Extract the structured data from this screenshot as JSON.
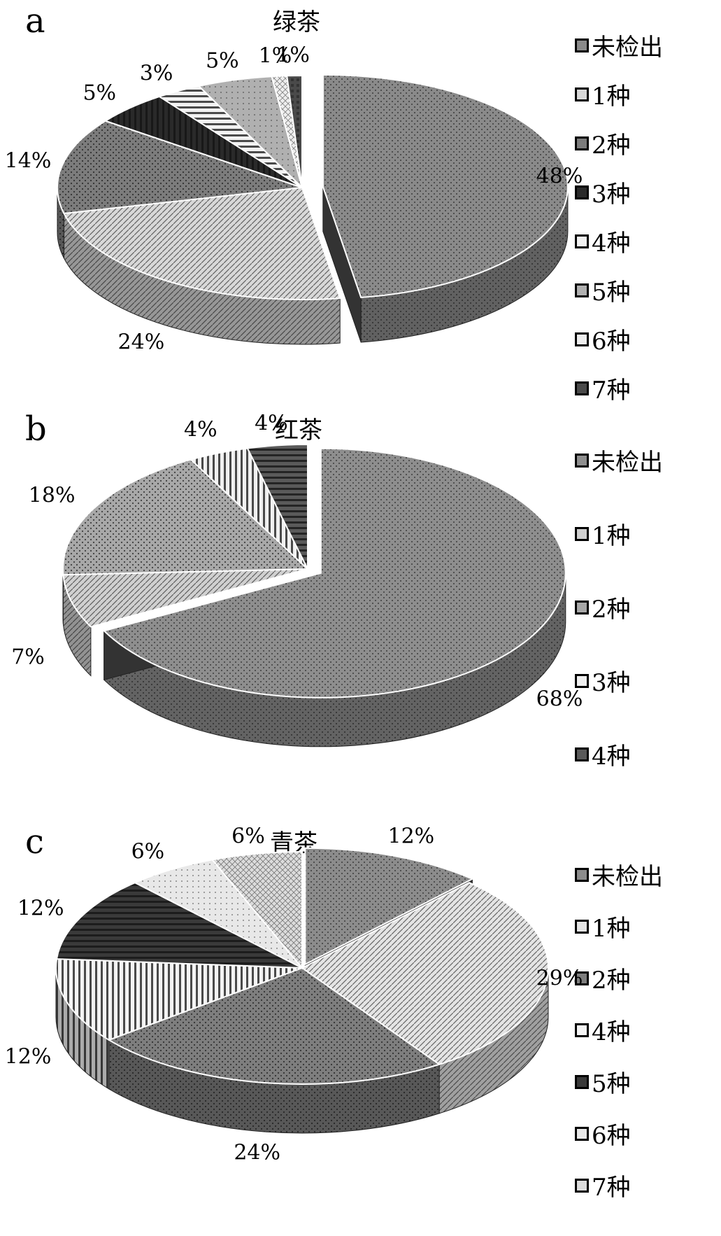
{
  "chart_data": [
    {
      "type": "pie",
      "panel": "a",
      "title": "绿茶",
      "categories": [
        "未检出",
        "1种",
        "2种",
        "3种",
        "4种",
        "5种",
        "6种",
        "7种"
      ],
      "values": [
        48,
        24,
        14,
        5,
        3,
        5,
        1,
        1
      ],
      "labels": [
        "48%",
        "24%",
        "14%",
        "5%",
        "3%",
        "5%",
        "1%",
        "1%"
      ],
      "legend_position": "right",
      "colors": [
        "#8a8a8a",
        "#d8d8d8",
        "#7c7c7c",
        "#2a2a2a",
        "#f2f2f2",
        "#b0b0b0",
        "#eeeeee",
        "#4a4a4a"
      ]
    },
    {
      "type": "pie",
      "panel": "b",
      "title": "红茶",
      "categories": [
        "未检出",
        "1种",
        "2种",
        "3种",
        "4种"
      ],
      "values": [
        68,
        7,
        18,
        4,
        4
      ],
      "labels": [
        "68%",
        "7%",
        "18%",
        "4%",
        "4%"
      ],
      "legend_position": "right",
      "colors": [
        "#8e8e8e",
        "#d0d0d0",
        "#a8a8a8",
        "#f0f0f0",
        "#5a5a5a"
      ]
    },
    {
      "type": "pie",
      "panel": "c",
      "title": "青茶",
      "categories": [
        "未检出",
        "1种",
        "2种",
        "4种",
        "5种",
        "6种",
        "7种"
      ],
      "values": [
        12,
        29,
        24,
        12,
        12,
        6,
        6
      ],
      "labels": [
        "12%",
        "29%",
        "24%",
        "12%",
        "12%",
        "6%",
        "6%"
      ],
      "legend_position": "right",
      "colors": [
        "#8c8c8c",
        "#e4e4e4",
        "#7e7e7e",
        "#f4f4f4",
        "#3a3a3a",
        "#e8e8e8",
        "#dcdcdc"
      ]
    }
  ]
}
